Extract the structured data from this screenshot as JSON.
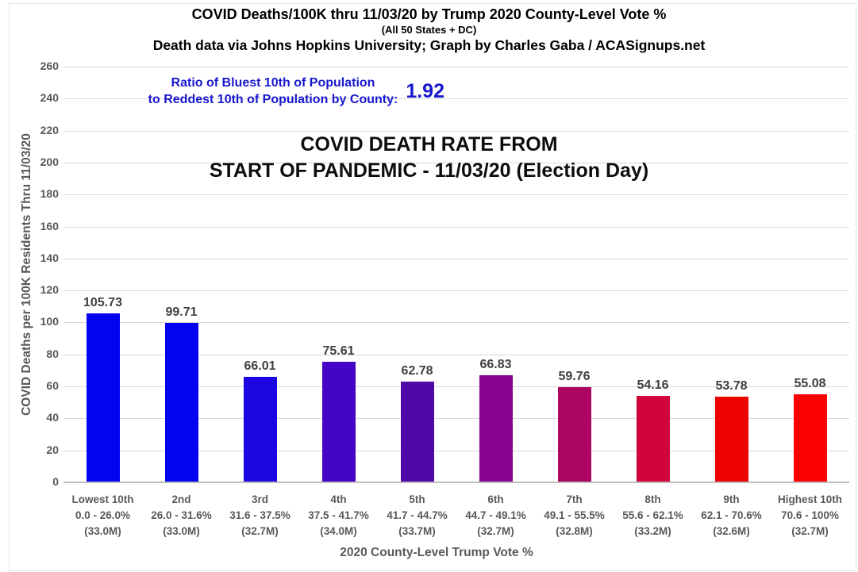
{
  "header": {
    "title": "COVID Deaths/100K thru 11/03/20 by Trump 2020 County-Level Vote %",
    "subtitle": "(All 50 States + DC)",
    "credit": "Death data via Johns Hopkins University; Graph by Charles Gaba / ACASignups.net"
  },
  "ratio": {
    "line1": "Ratio of Bluest 10th of Population",
    "line2": "to Reddest 10th of Population by County:",
    "value": "1.92"
  },
  "chart_data": {
    "type": "bar",
    "title_line1": "COVID DEATH RATE FROM",
    "title_line2": "START OF PANDEMIC - 11/03/20 (Election Day)",
    "ylabel": "COVID Deaths per 100K Residents Thru 11/03/20",
    "xlabel": "2020 County-Level Trump Vote %",
    "ylim": [
      0,
      260
    ],
    "ytick_step": 20,
    "grid": true,
    "legend": "none",
    "categories": [
      "Lowest 10th",
      "2nd",
      "3rd",
      "4th",
      "5th",
      "6th",
      "7th",
      "8th",
      "9th",
      "Highest 10th"
    ],
    "bars": [
      {
        "rank": "Lowest 10th",
        "range": "0.0 - 26.0%",
        "population": "(33.0M)",
        "value": 105.73,
        "value_label": "105.73",
        "color": "#0303ef"
      },
      {
        "rank": "2nd",
        "range": "26.0 - 31.6%",
        "population": "(33.0M)",
        "value": 99.71,
        "value_label": "99.71",
        "color": "#0303ef"
      },
      {
        "rank": "3rd",
        "range": "31.6 - 37.5%",
        "population": "(32.7M)",
        "value": 66.01,
        "value_label": "66.01",
        "color": "#1b06e2"
      },
      {
        "rank": "4th",
        "range": "37.5 - 41.7%",
        "population": "(34.0M)",
        "value": 75.61,
        "value_label": "75.61",
        "color": "#4505c7"
      },
      {
        "rank": "5th",
        "range": "41.7 - 44.7%",
        "population": "(33.7M)",
        "value": 62.78,
        "value_label": "62.78",
        "color": "#4e09a7"
      },
      {
        "rank": "6th",
        "range": "44.7 - 49.1%",
        "population": "(32.7M)",
        "value": 66.83,
        "value_label": "66.83",
        "color": "#8a0490"
      },
      {
        "rank": "7th",
        "range": "49.1 - 55.5%",
        "population": "(32.8M)",
        "value": 59.76,
        "value_label": "59.76",
        "color": "#ad0562"
      },
      {
        "rank": "8th",
        "range": "55.6 - 62.1%",
        "population": "(33.2M)",
        "value": 54.16,
        "value_label": "54.16",
        "color": "#d2043c"
      },
      {
        "rank": "9th",
        "range": "62.1 - 70.6%",
        "population": "(32.6M)",
        "value": 53.78,
        "value_label": "53.78",
        "color": "#ee0303"
      },
      {
        "rank": "Highest 10th",
        "range": "70.6 - 100%",
        "population": "(32.7M)",
        "value": 55.08,
        "value_label": "55.08",
        "color": "#fb0101"
      }
    ]
  },
  "colors": {
    "accent_blue_text": "#1717cd",
    "gridline": "#d9d9d9",
    "axis_text": "#595959",
    "value_text": "#3f3f3f",
    "title_text": "#000000"
  }
}
